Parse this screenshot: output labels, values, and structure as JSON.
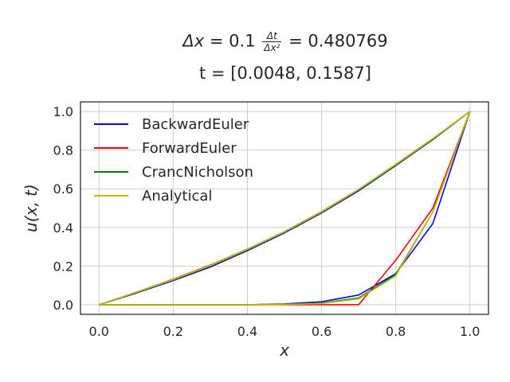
{
  "chart_data": {
    "type": "line",
    "title": {
      "line1_dx_label": "Δx",
      "line1_dx_value": "= 0.1",
      "line1_frac_num": "Δt",
      "line1_frac_den": "Δx²",
      "line1_ratio_value": "= 0.480769",
      "line2": "t = [0.0048, 0.1587]"
    },
    "xlabel": "x",
    "ylabel": "u(x, t)",
    "xlim": [
      -0.05,
      1.05
    ],
    "ylim": [
      -0.05,
      1.05
    ],
    "xticks": [
      0.0,
      0.2,
      0.4,
      0.6,
      0.8,
      1.0
    ],
    "xtick_labels": [
      "0.0",
      "0.2",
      "0.4",
      "0.6",
      "0.8",
      "1.0"
    ],
    "yticks": [
      0.0,
      0.2,
      0.4,
      0.6,
      0.8,
      1.0
    ],
    "ytick_labels": [
      "0.0",
      "0.2",
      "0.4",
      "0.6",
      "0.8",
      "1.0"
    ],
    "grid": true,
    "legend_position": "top-left",
    "x": [
      0.0,
      0.1,
      0.2,
      0.3,
      0.4,
      0.5,
      0.6,
      0.7,
      0.8,
      0.9,
      1.0
    ],
    "series": [
      {
        "name": "BackwardEuler",
        "color": "#0000ff",
        "time": "t1",
        "values": [
          0.0,
          0.0,
          0.0,
          0.0,
          0.0,
          0.004,
          0.015,
          0.05,
          0.16,
          0.42,
          1.0
        ]
      },
      {
        "name": "BackwardEuler",
        "color": "#0000ff",
        "time": "t2",
        "values": [
          0.0,
          0.06,
          0.125,
          0.195,
          0.28,
          0.372,
          0.475,
          0.59,
          0.72,
          0.855,
          1.0
        ],
        "legend": false
      },
      {
        "name": "ForwardEuler",
        "color": "#ff0000",
        "time": "t1",
        "values": [
          0.0,
          0.0,
          0.0,
          0.0,
          0.0,
          0.0,
          0.0,
          0.0,
          0.23,
          0.5,
          1.0
        ]
      },
      {
        "name": "ForwardEuler",
        "color": "#ff0000",
        "time": "t2",
        "values": [
          0.0,
          0.064,
          0.132,
          0.205,
          0.288,
          0.378,
          0.482,
          0.597,
          0.726,
          0.86,
          1.0
        ],
        "legend": false
      },
      {
        "name": "CrancNicholson",
        "color": "#008000",
        "time": "t1",
        "values": [
          0.0,
          0.0,
          0.0,
          0.0,
          0.0,
          0.002,
          0.008,
          0.035,
          0.155,
          0.48,
          1.0
        ]
      },
      {
        "name": "CrancNicholson",
        "color": "#008000",
        "time": "t2",
        "values": [
          0.0,
          0.062,
          0.129,
          0.2,
          0.284,
          0.375,
          0.478,
          0.594,
          0.723,
          0.857,
          1.0
        ],
        "legend": false
      },
      {
        "name": "Analytical",
        "color": "#bfbf00",
        "time": "t1",
        "values": [
          0.0,
          0.0,
          0.0,
          0.0,
          0.0,
          0.001,
          0.006,
          0.03,
          0.15,
          0.48,
          1.0
        ]
      },
      {
        "name": "Analytical",
        "color": "#bfbf00",
        "time": "t2",
        "values": [
          0.0,
          0.064,
          0.131,
          0.203,
          0.287,
          0.378,
          0.481,
          0.597,
          0.726,
          0.86,
          1.0
        ],
        "legend": false
      }
    ],
    "legend": [
      {
        "label": "BackwardEuler",
        "color": "#0000ff"
      },
      {
        "label": "ForwardEuler",
        "color": "#ff0000"
      },
      {
        "label": "CrancNicholson",
        "color": "#008000"
      },
      {
        "label": "Analytical",
        "color": "#bfbf00"
      }
    ],
    "style": {
      "grid_color": "#cccccc",
      "axes_edge_color": "#262626",
      "text_color": "#262626"
    }
  }
}
